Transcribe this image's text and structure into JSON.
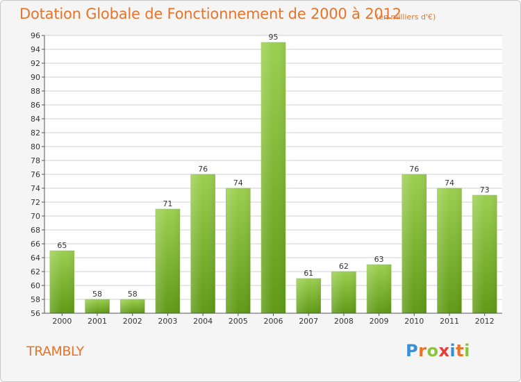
{
  "title": "Dotation Globale de Fonctionnement de 2000 à 2012",
  "subtitle": "(en milliers d'€)",
  "commune": "TRAMBLY",
  "logo": {
    "letters": [
      "P",
      "r",
      "o",
      "x",
      "i",
      "t",
      "i"
    ],
    "colors": [
      "#3a8fd6",
      "#e8742a",
      "#8cc43c",
      "#e83a3a",
      "#3a8fd6",
      "#e8742a",
      "#8cc43c"
    ]
  },
  "colors": {
    "bar_top": "#9ccf50",
    "bar_bottom": "#5f9a16",
    "title": "#e8742a",
    "grid": "#cfcfcf"
  },
  "chart_data": {
    "type": "bar",
    "title": "Dotation Globale de Fonctionnement de 2000 à 2012",
    "categories": [
      "2000",
      "2001",
      "2002",
      "2003",
      "2004",
      "2005",
      "2006",
      "2007",
      "2008",
      "2009",
      "2010",
      "2011",
      "2012"
    ],
    "values": [
      65,
      58,
      58,
      71,
      76,
      74,
      95,
      61,
      62,
      63,
      76,
      74,
      73
    ],
    "ylim": [
      56,
      96
    ],
    "yticks": [
      56,
      58,
      60,
      62,
      64,
      66,
      68,
      70,
      72,
      74,
      76,
      78,
      80,
      82,
      84,
      86,
      88,
      90,
      92,
      94,
      96
    ],
    "grid": true
  }
}
